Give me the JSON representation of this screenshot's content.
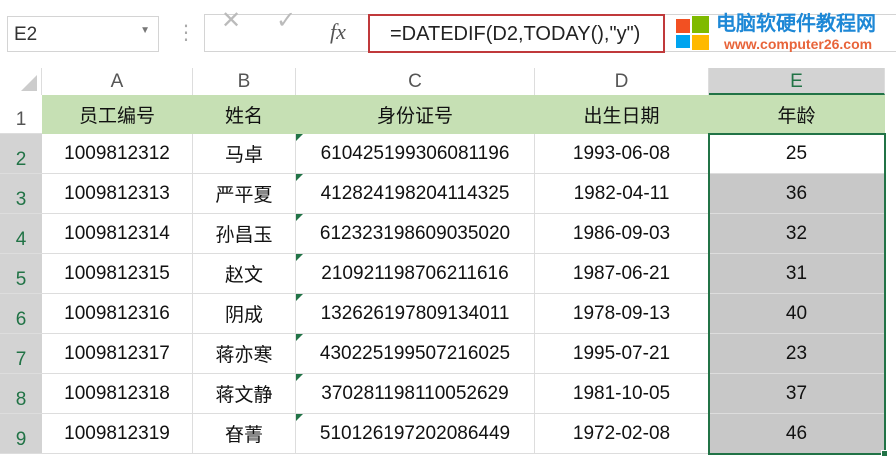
{
  "name_box": "E2",
  "formula_bar": {
    "cancel_icon": "x-icon",
    "enter_icon": "check-icon",
    "fx_label": "fx",
    "formula": "=DATEDIF(D2,TODAY(),\"y\")"
  },
  "columns": [
    "A",
    "B",
    "C",
    "D",
    "E"
  ],
  "rows": [
    "1",
    "2",
    "3",
    "4",
    "5",
    "6",
    "7",
    "8",
    "9"
  ],
  "headers": [
    "员工编号",
    "姓名",
    "身份证号",
    "出生日期",
    "年龄"
  ],
  "data": [
    [
      "1009812312",
      "马卓",
      "610425199306081196",
      "1993-06-08",
      "25"
    ],
    [
      "1009812313",
      "严平夏",
      "412824198204114325",
      "1982-04-11",
      "36"
    ],
    [
      "1009812314",
      "孙昌玉",
      "612323198609035020",
      "1986-09-03",
      "32"
    ],
    [
      "1009812315",
      "赵文",
      "210921198706211616",
      "1987-06-21",
      "31"
    ],
    [
      "1009812316",
      "阴成",
      "132626197809134011",
      "1978-09-13",
      "40"
    ],
    [
      "1009812317",
      "蒋亦寒",
      "430225199507216025",
      "1995-07-21",
      "23"
    ],
    [
      "1009812318",
      "蒋文静",
      "370281198110052629",
      "1981-10-05",
      "37"
    ],
    [
      "1009812319",
      "眘菁",
      "510126197202086449",
      "1972-02-08",
      "46"
    ]
  ],
  "watermark": {
    "title": "电脑软硬件教程网",
    "url": "www.computer26.com"
  },
  "colors": {
    "header_fill": "#c6e0b4",
    "selection_fill": "#c8c8c8",
    "accent": "#217346",
    "formula_highlight": "#c0393b"
  }
}
